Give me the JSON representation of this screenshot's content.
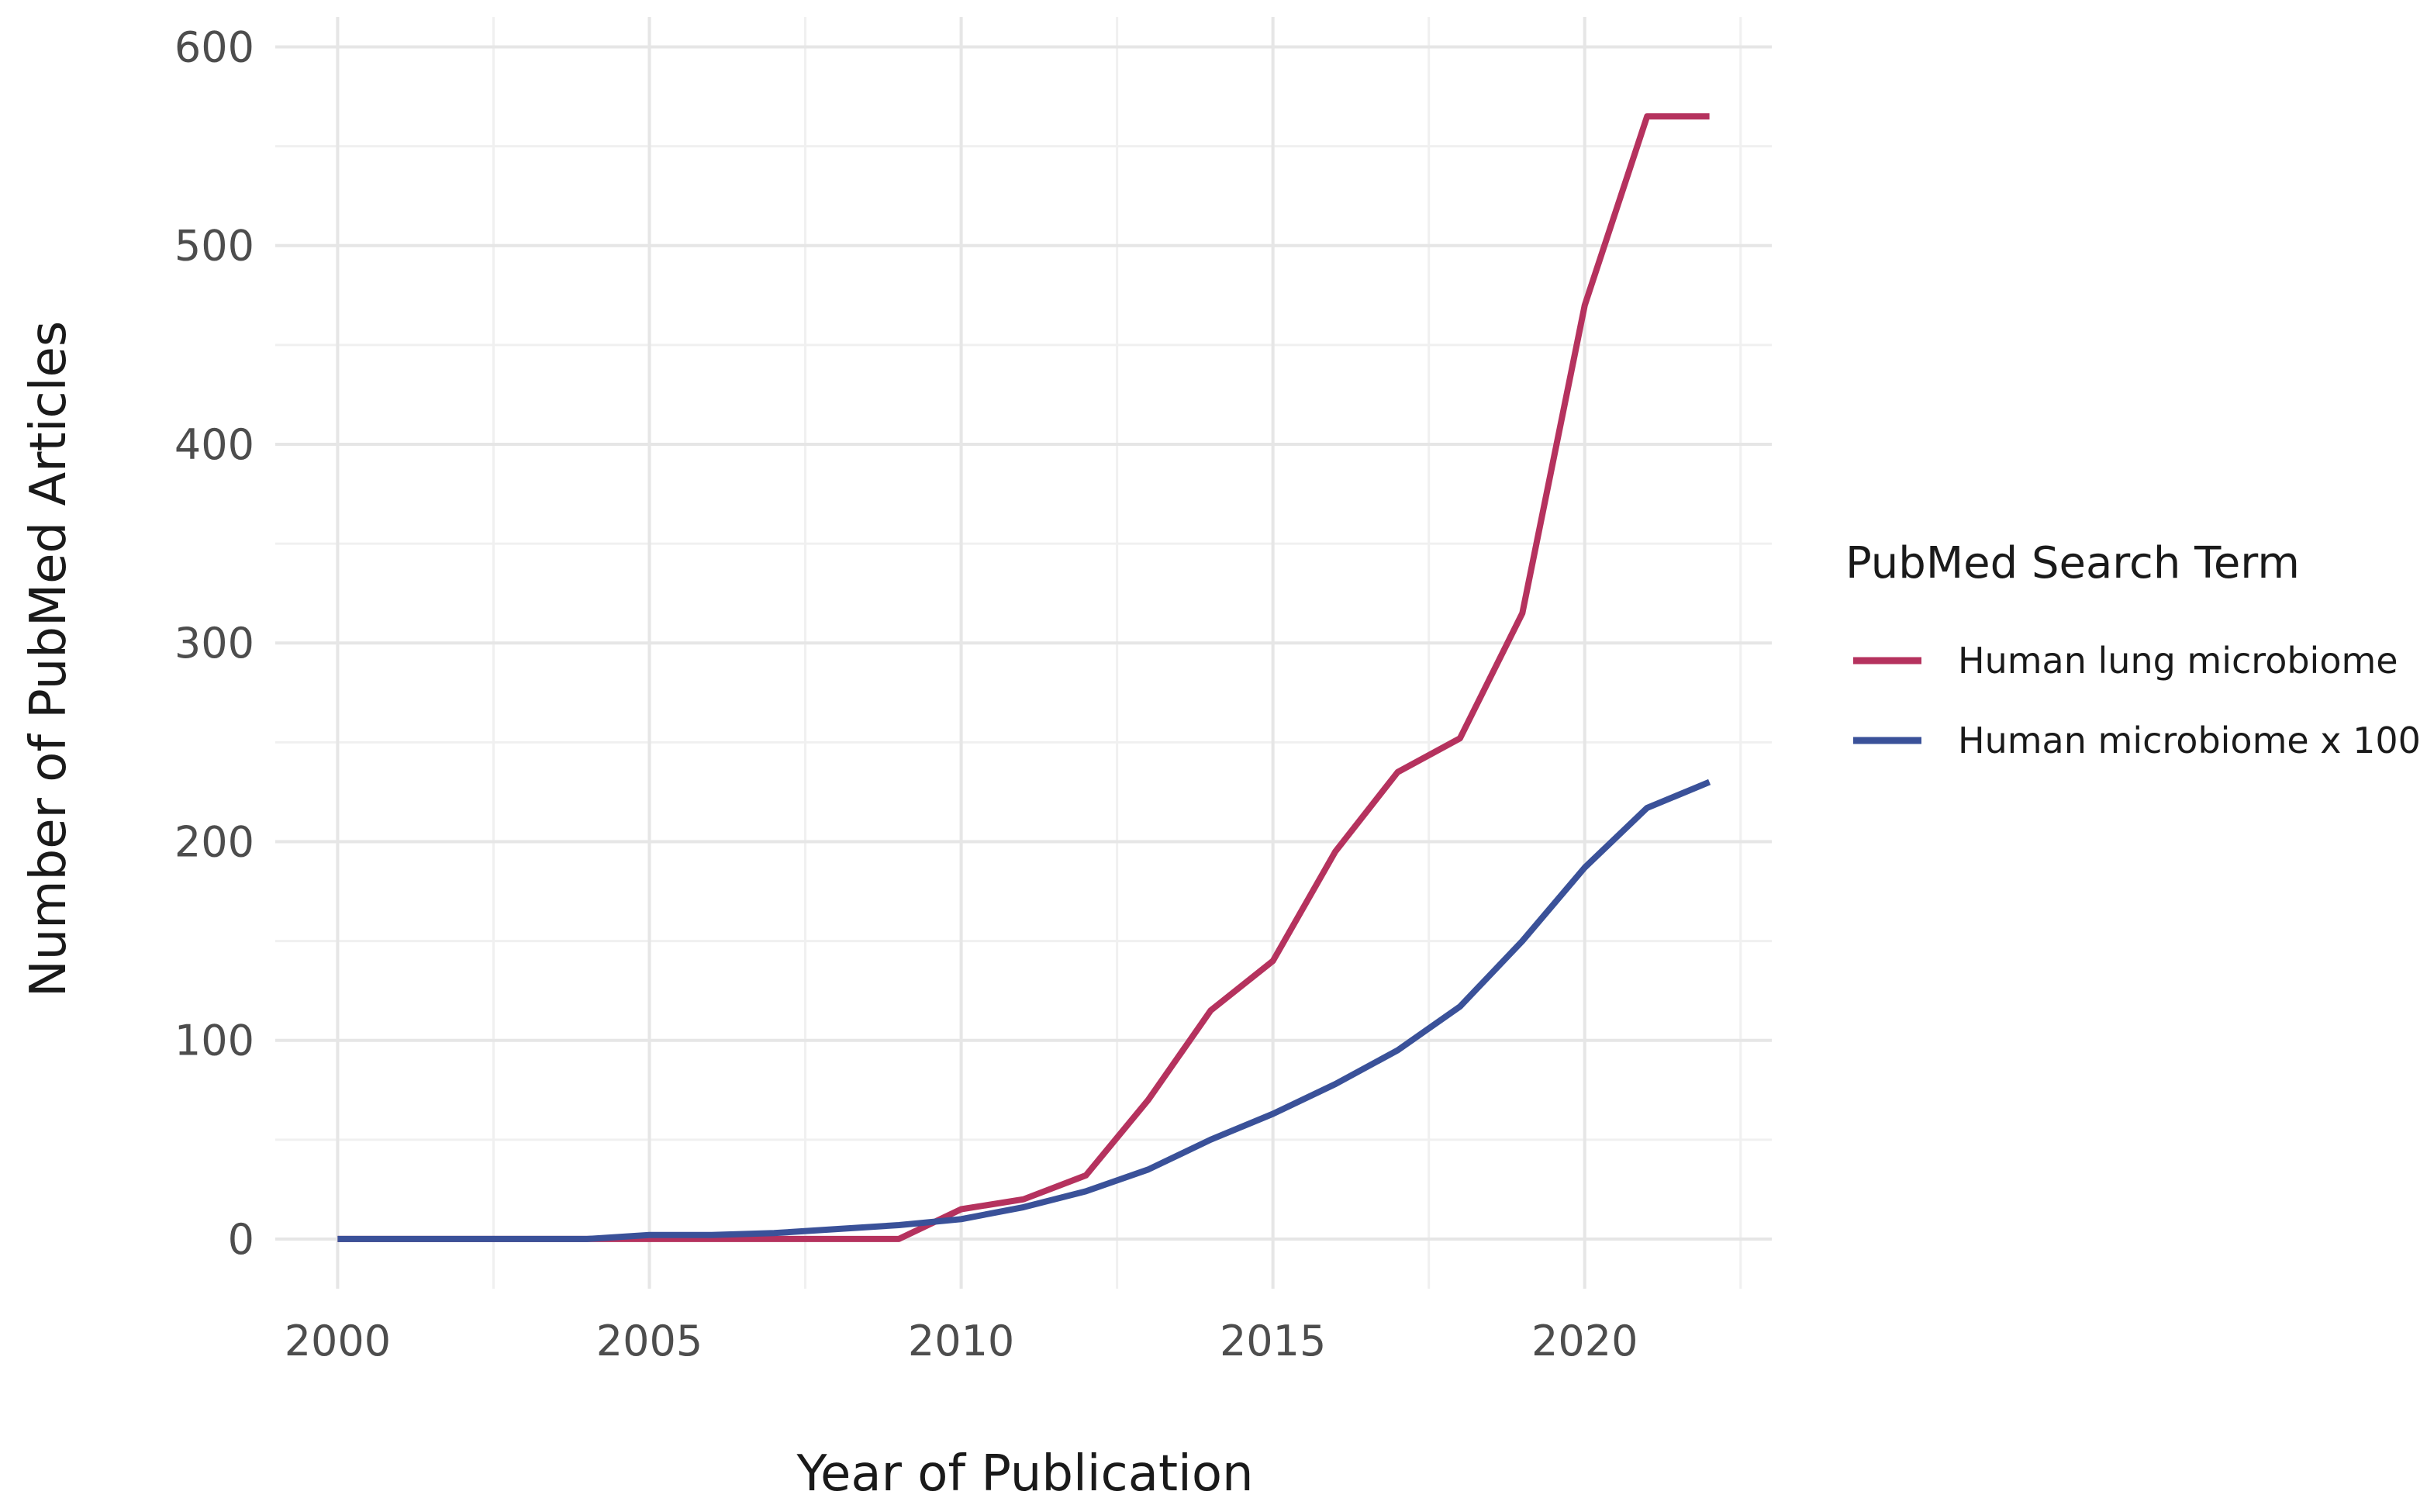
{
  "chart_data": {
    "type": "line",
    "title": "",
    "xlabel": "Year of Publication",
    "ylabel": "Number of PubMed Articles",
    "xlim": [
      1999,
      2023
    ],
    "ylim": [
      -25,
      615
    ],
    "x_ticks": [
      2000,
      2005,
      2010,
      2015,
      2020
    ],
    "x_tick_labels": [
      "2000",
      "2005",
      "2010",
      "2015",
      "2020"
    ],
    "y_ticks": [
      0,
      100,
      200,
      300,
      400,
      500,
      600
    ],
    "y_tick_labels": [
      "0",
      "100",
      "200",
      "300",
      "400",
      "500",
      "600"
    ],
    "grid": true,
    "legend": {
      "title": "PubMed Search Term",
      "placement": "right"
    },
    "series": [
      {
        "name": "Human lung microbiome",
        "color": "#b5325e",
        "x": [
          2000,
          2001,
          2002,
          2003,
          2004,
          2005,
          2006,
          2007,
          2008,
          2009,
          2010,
          2011,
          2012,
          2013,
          2014,
          2015,
          2016,
          2017,
          2018,
          2019,
          2020,
          2021,
          2022
        ],
        "y": [
          0,
          0,
          0,
          0,
          0,
          0,
          0,
          0,
          0,
          0,
          15,
          20,
          32,
          70,
          115,
          140,
          195,
          235,
          252,
          315,
          470,
          565,
          565
        ]
      },
      {
        "name": "Human microbiome x 100",
        "color": "#3a5199",
        "x": [
          2000,
          2001,
          2002,
          2003,
          2004,
          2005,
          2006,
          2007,
          2008,
          2009,
          2010,
          2011,
          2012,
          2013,
          2014,
          2015,
          2016,
          2017,
          2018,
          2019,
          2020,
          2021,
          2022
        ],
        "y": [
          0,
          0,
          0,
          0,
          0,
          2,
          2,
          3,
          5,
          7,
          10,
          16,
          24,
          35,
          50,
          63,
          78,
          95,
          117,
          150,
          187,
          217,
          230
        ]
      }
    ]
  }
}
